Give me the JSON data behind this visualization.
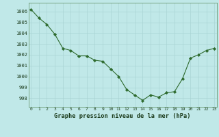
{
  "x": [
    0,
    1,
    2,
    3,
    4,
    5,
    6,
    7,
    8,
    9,
    10,
    11,
    12,
    13,
    14,
    15,
    16,
    17,
    18,
    19,
    20,
    21,
    22,
    23
  ],
  "y": [
    1006.2,
    1005.4,
    1004.8,
    1003.9,
    1002.6,
    1002.4,
    1001.9,
    1001.9,
    1001.5,
    1001.4,
    1000.7,
    1000.0,
    998.8,
    998.3,
    997.8,
    998.3,
    998.1,
    998.5,
    998.6,
    999.8,
    1001.7,
    1002.0,
    1002.4,
    1002.6
  ],
  "line_color": "#2d6a2d",
  "marker_color": "#2d6a2d",
  "bg_color": "#c0e8e8",
  "grid_color": "#aad4d4",
  "xlabel": "Graphe pression niveau de la mer (hPa)",
  "xlabel_color": "#1a3a1a",
  "tick_color": "#1a3a1a",
  "ylim": [
    997.2,
    1006.8
  ],
  "yticks": [
    998,
    999,
    1000,
    1001,
    1002,
    1003,
    1004,
    1005,
    1006
  ],
  "xticks": [
    0,
    1,
    2,
    3,
    4,
    5,
    6,
    7,
    8,
    9,
    10,
    11,
    12,
    13,
    14,
    15,
    16,
    17,
    18,
    19,
    20,
    21,
    22,
    23
  ],
  "xtick_labels": [
    "0",
    "1",
    "2",
    "3",
    "4",
    "5",
    "6",
    "7",
    "8",
    "9",
    "10",
    "11",
    "12",
    "13",
    "14",
    "15",
    "16",
    "17",
    "18",
    "19",
    "20",
    "21",
    "22",
    "23"
  ]
}
